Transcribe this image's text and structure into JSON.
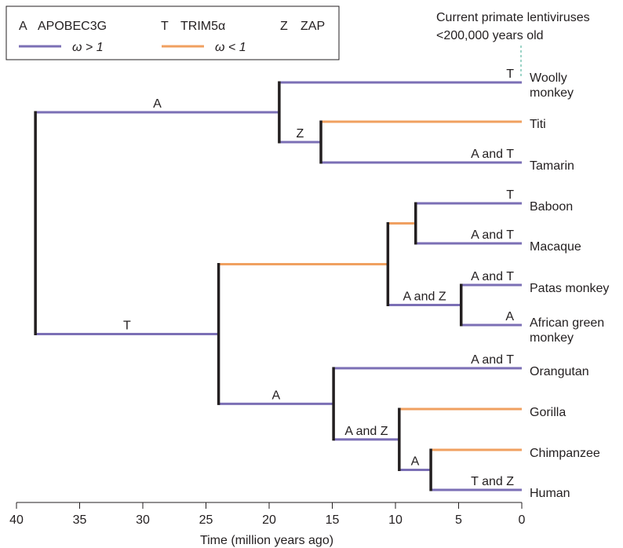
{
  "legend": {
    "keys": [
      {
        "code": "A",
        "name": "APOBEC3G"
      },
      {
        "code": "T",
        "name": "TRIM5α"
      },
      {
        "code": "Z",
        "name": "ZAP"
      }
    ],
    "lines": [
      {
        "label": "ω > 1",
        "color": "#7b6fb5"
      },
      {
        "label": "ω < 1",
        "color": "#f0a060"
      }
    ]
  },
  "annotation": {
    "line1": "Current primate lentiviruses",
    "line2": "<200,000 years old"
  },
  "taxa": [
    {
      "id": "woolly",
      "lines": [
        "Woolly",
        "monkey"
      ]
    },
    {
      "id": "titi",
      "lines": [
        "Titi"
      ]
    },
    {
      "id": "tamarin",
      "lines": [
        "Tamarin"
      ]
    },
    {
      "id": "baboon",
      "lines": [
        "Baboon"
      ]
    },
    {
      "id": "macaque",
      "lines": [
        "Macaque"
      ]
    },
    {
      "id": "patas",
      "lines": [
        "Patas monkey"
      ]
    },
    {
      "id": "agm",
      "lines": [
        "African green",
        "monkey"
      ]
    },
    {
      "id": "orangutan",
      "lines": [
        "Orangutan"
      ]
    },
    {
      "id": "gorilla",
      "lines": [
        "Gorilla"
      ]
    },
    {
      "id": "chimp",
      "lines": [
        "Chimpanzee"
      ]
    },
    {
      "id": "human",
      "lines": [
        "Human"
      ]
    }
  ],
  "nodes": [
    {
      "id": "root",
      "age_mya": 38.5
    },
    {
      "id": "nwm",
      "age_mya": 19.2
    },
    {
      "id": "titi_tamarin",
      "age_mya": 15.9
    },
    {
      "id": "catarrhini",
      "age_mya": 24.0
    },
    {
      "id": "owm",
      "age_mya": 10.6
    },
    {
      "id": "papionini",
      "age_mya": 8.4
    },
    {
      "id": "patas_agm",
      "age_mya": 4.8
    },
    {
      "id": "hominidae",
      "age_mya": 14.9
    },
    {
      "id": "homininae",
      "age_mya": 9.7
    },
    {
      "id": "hominini",
      "age_mya": 7.2
    }
  ],
  "branches": [
    {
      "from": "root",
      "to": "nwm",
      "omega": ">1",
      "label": "A"
    },
    {
      "from": "root",
      "to": "catarrhini",
      "omega": ">1",
      "label": "T"
    },
    {
      "from": "nwm",
      "to": "woolly",
      "omega": ">1",
      "label": "T"
    },
    {
      "from": "nwm",
      "to": "titi_tamarin",
      "omega": ">1",
      "label": "Z"
    },
    {
      "from": "titi_tamarin",
      "to": "titi",
      "omega": "<1",
      "label": ""
    },
    {
      "from": "titi_tamarin",
      "to": "tamarin",
      "omega": ">1",
      "label": "A and T"
    },
    {
      "from": "catarrhini",
      "to": "owm",
      "omega": "<1",
      "label": ""
    },
    {
      "from": "catarrhini",
      "to": "hominidae",
      "omega": ">1",
      "label": "A"
    },
    {
      "from": "owm",
      "to": "papionini",
      "omega": "<1",
      "label": ""
    },
    {
      "from": "owm",
      "to": "patas_agm",
      "omega": ">1",
      "label": "A and Z"
    },
    {
      "from": "papionini",
      "to": "baboon",
      "omega": ">1",
      "label": "T"
    },
    {
      "from": "papionini",
      "to": "macaque",
      "omega": ">1",
      "label": "A and T"
    },
    {
      "from": "patas_agm",
      "to": "patas",
      "omega": ">1",
      "label": "A and T"
    },
    {
      "from": "patas_agm",
      "to": "agm",
      "omega": ">1",
      "label": "A"
    },
    {
      "from": "hominidae",
      "to": "orangutan",
      "omega": ">1",
      "label": "A and T"
    },
    {
      "from": "hominidae",
      "to": "homininae",
      "omega": ">1",
      "label": "A and Z"
    },
    {
      "from": "homininae",
      "to": "gorilla",
      "omega": "<1",
      "label": ""
    },
    {
      "from": "homininae",
      "to": "hominini",
      "omega": ">1",
      "label": "A"
    },
    {
      "from": "hominini",
      "to": "chimp",
      "omega": "<1",
      "label": ""
    },
    {
      "from": "hominini",
      "to": "human",
      "omega": ">1",
      "label": "T and Z"
    }
  ],
  "axis": {
    "title": "Time (million years ago)",
    "ticks": [
      40,
      35,
      30,
      25,
      20,
      15,
      10,
      5,
      0
    ],
    "range": [
      40,
      0
    ]
  }
}
